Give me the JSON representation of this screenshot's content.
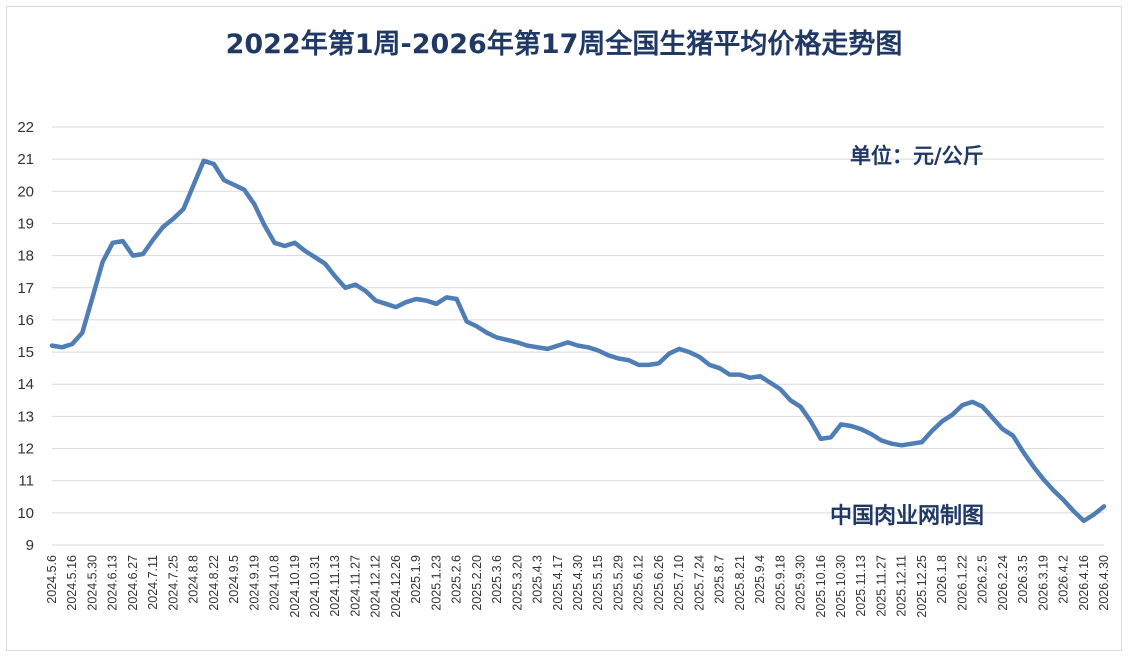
{
  "title": "2022年第1周-2026年第17周全国生猪平均价格走势图",
  "unit": "单位：元/公斤",
  "source": "中国肉业网制图",
  "colors": {
    "line": "#4f7db5",
    "grid": "#d9d9d9",
    "title": "#1f3864"
  },
  "chart_data": {
    "type": "line",
    "title": "2022年第1周-2026年第17周全国生猪平均价格走势图",
    "xlabel": "",
    "ylabel": "",
    "ylim": [
      9,
      22
    ],
    "yticks": [
      9,
      10,
      11,
      12,
      13,
      14,
      15,
      16,
      17,
      18,
      19,
      20,
      21,
      22
    ],
    "grid": "horizontal",
    "legend": "none",
    "x_tick_labels": [
      "2024.5.6",
      "2024.5.16",
      "2024.5.30",
      "2024.6.13",
      "2024.6.27",
      "2024.7.11",
      "2024.7.25",
      "2024.8.8",
      "2024.8.22",
      "2024.9.5",
      "2024.9.19",
      "2024.10.8",
      "2024.10.19",
      "2024.10.31",
      "2024.11.13",
      "2024.11.27",
      "2024.12.12",
      "2024.12.26",
      "2025.1.9",
      "2025.1.23",
      "2025.2.6",
      "2025.2.20",
      "2025.3.6",
      "2025.3.20",
      "2025.4.3",
      "2025.4.17",
      "2025.4.30",
      "2025.5.15",
      "2025.5.29",
      "2025.6.12",
      "2025.6.26",
      "2025.7.10",
      "2025.7.24",
      "2025.8.7",
      "2025.8.21",
      "2025.9.4",
      "2025.9.18",
      "2025.9.30",
      "2025.10.16",
      "2025.10.30",
      "2025.11.13",
      "2025.11.27",
      "2025.12.11",
      "2025.12.25",
      "2026.1.8",
      "2026.1.22",
      "2026.2.5",
      "2026.2.24",
      "2026.3.5",
      "2026.3.19",
      "2026.4.2",
      "2026.4.16",
      "2026.4.30"
    ],
    "series": [
      {
        "values": [
          15.2,
          15.15,
          15.25,
          15.6,
          16.7,
          17.8,
          18.4,
          18.45,
          18.0,
          18.05,
          18.5,
          18.9,
          19.15,
          19.45,
          20.2,
          20.95,
          20.85,
          20.35,
          20.2,
          20.05,
          19.6,
          18.95,
          18.4,
          18.3,
          18.4,
          18.15,
          17.95,
          17.75,
          17.35,
          17.0,
          17.1,
          16.9,
          16.6,
          16.5,
          16.4,
          16.55,
          16.65,
          16.6,
          16.5,
          16.7,
          16.65,
          15.95,
          15.8,
          15.6,
          15.45,
          15.38,
          15.3,
          15.2,
          15.15,
          15.1,
          15.2,
          15.3,
          15.2,
          15.15,
          15.05,
          14.9,
          14.8,
          14.75,
          14.6,
          14.6,
          14.65,
          14.95,
          15.1,
          15.0,
          14.85,
          14.6,
          14.5,
          14.3,
          14.3,
          14.2,
          14.25,
          14.05,
          13.85,
          13.5,
          13.3,
          12.85,
          12.3,
          12.35,
          12.75,
          12.7,
          12.6,
          12.45,
          12.25,
          12.15,
          12.1,
          12.15,
          12.2,
          12.55,
          12.85,
          13.05,
          13.35,
          13.45,
          13.3,
          12.95,
          12.6,
          12.4,
          11.9,
          11.45,
          11.05,
          10.7,
          10.4,
          10.05,
          9.75,
          9.95,
          10.2
        ]
      }
    ]
  }
}
